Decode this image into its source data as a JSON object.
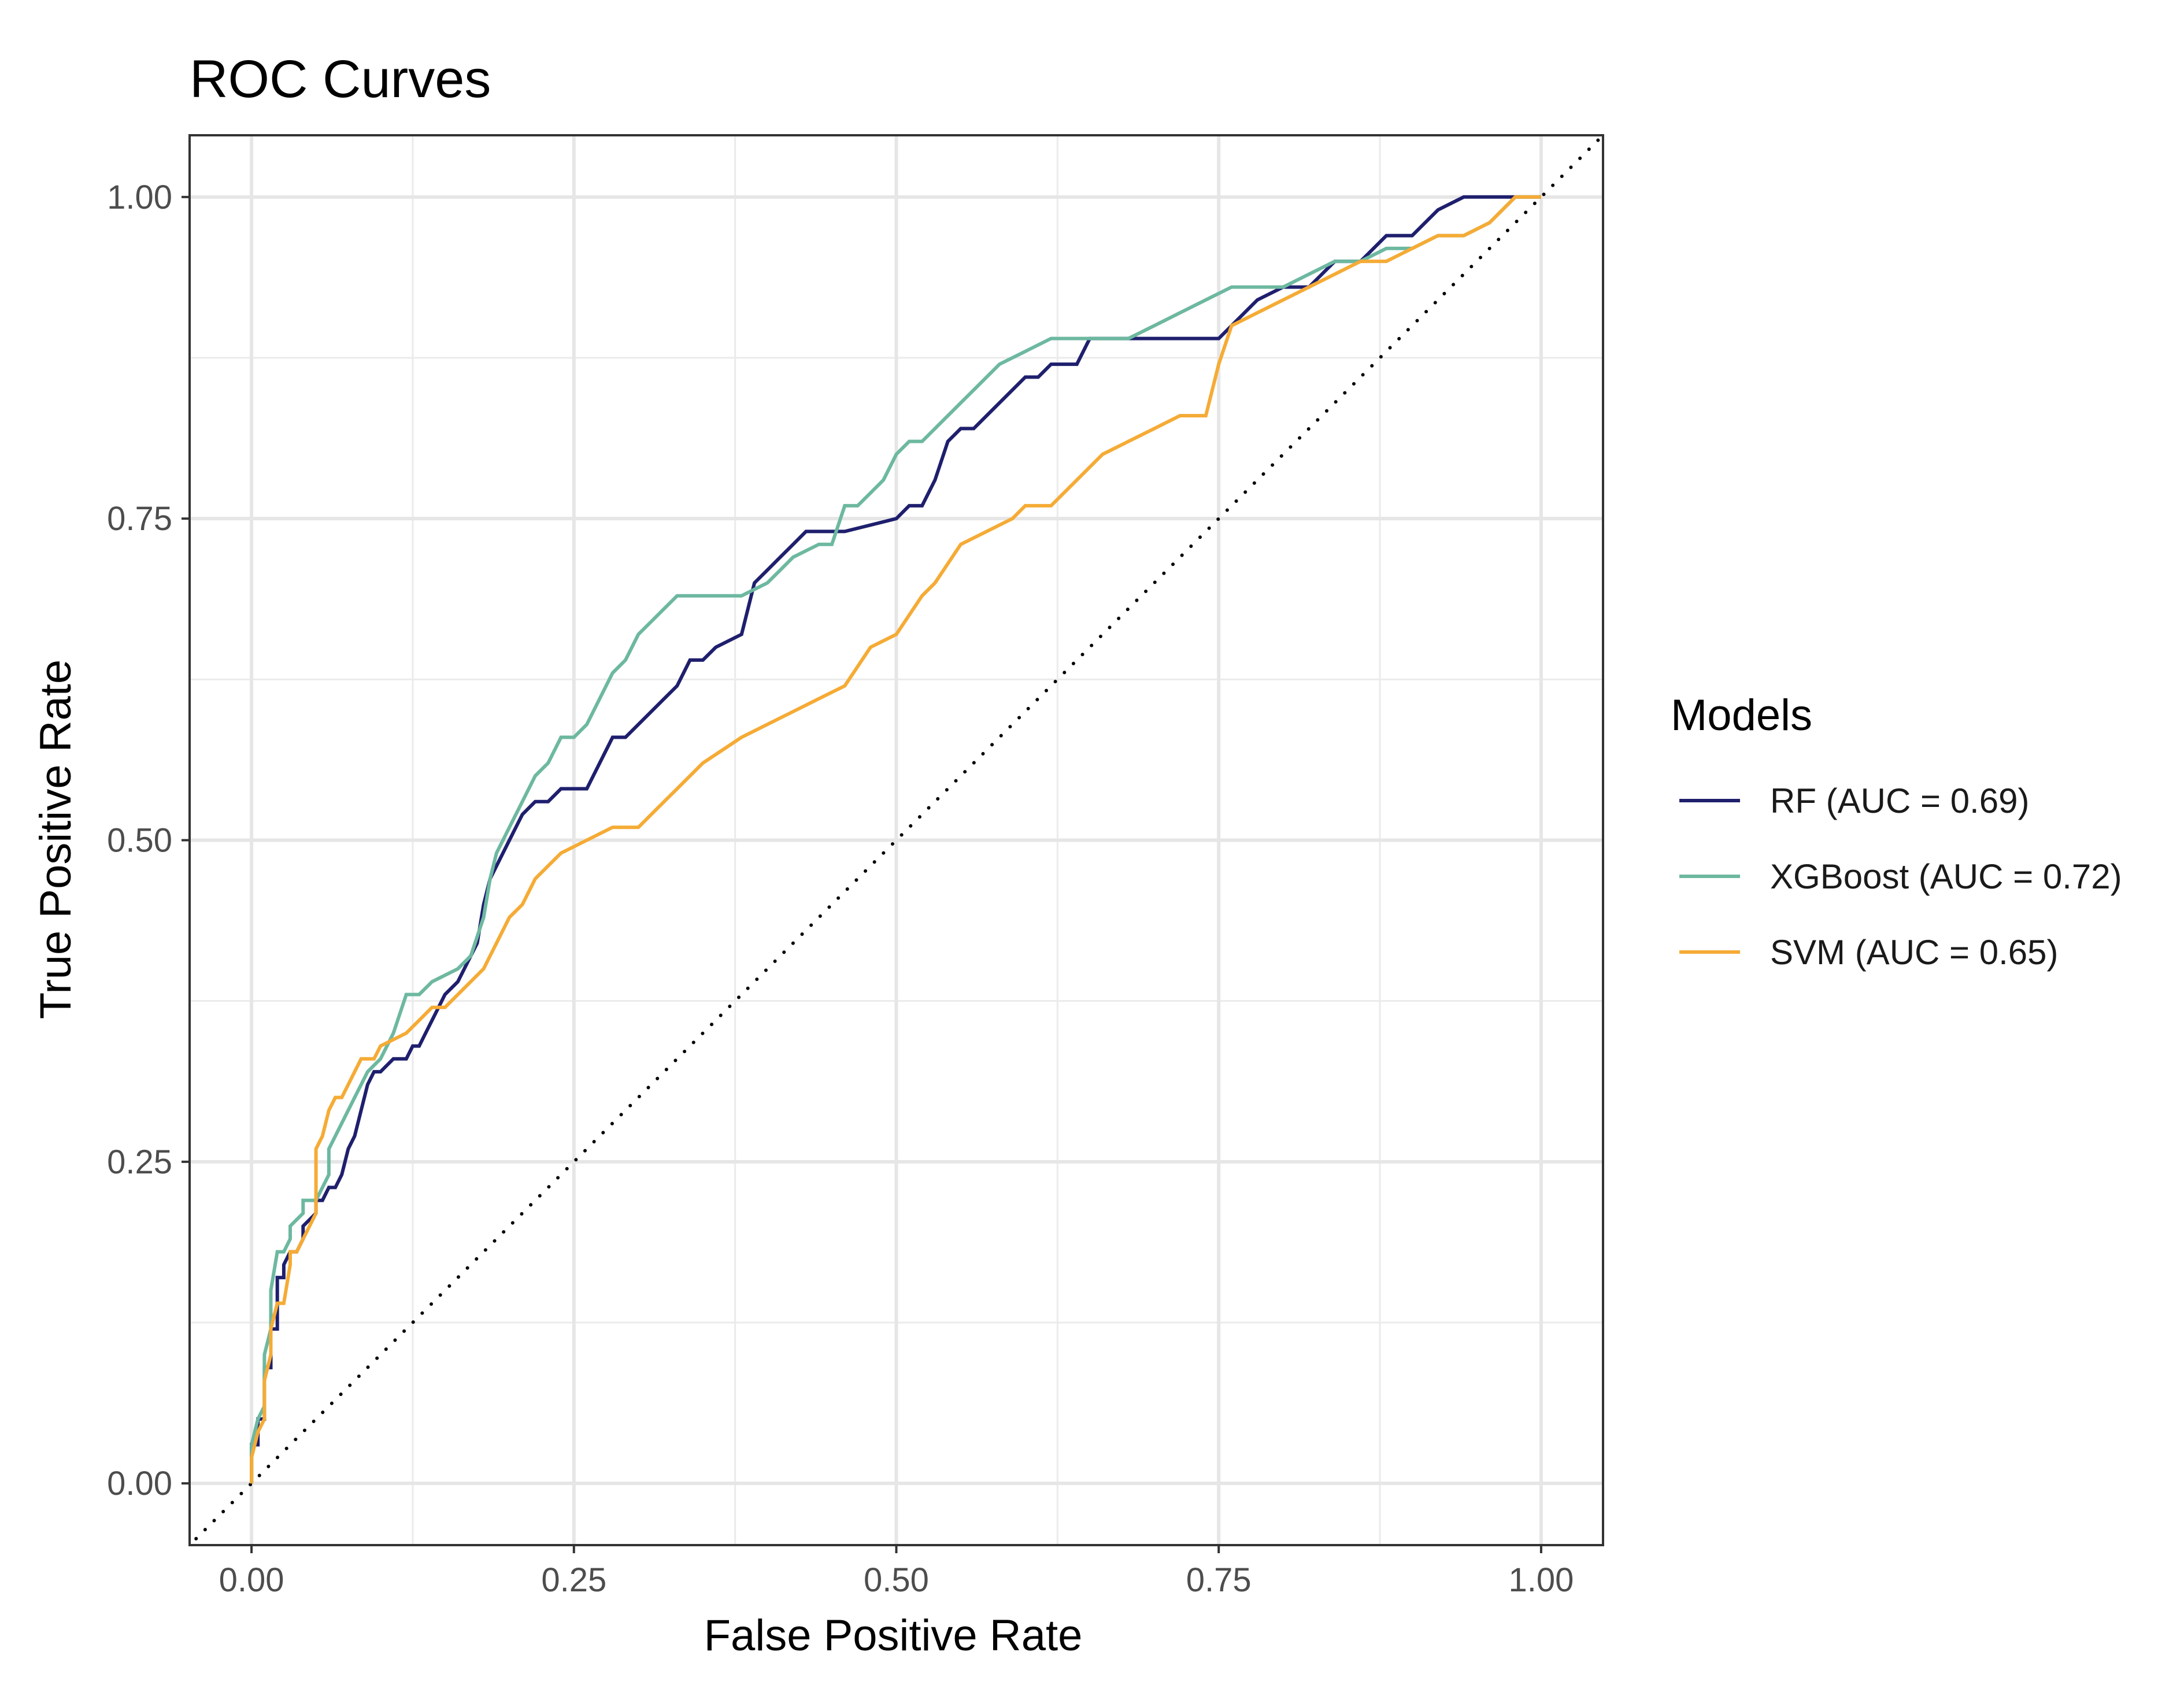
{
  "chart_data": {
    "type": "line",
    "title": "ROC Curves",
    "xlabel": "False Positive Rate",
    "ylabel": "True Positive Rate",
    "xlim": [
      -0.048,
      1.048
    ],
    "ylim": [
      -0.048,
      1.048
    ],
    "xticks": [
      0.0,
      0.25,
      0.5,
      0.75,
      1.0
    ],
    "xtick_labels": [
      "0.00",
      "0.25",
      "0.50",
      "0.75",
      "1.00"
    ],
    "yticks": [
      0.0,
      0.25,
      0.5,
      0.75,
      1.0
    ],
    "ytick_labels": [
      "0.00",
      "0.25",
      "0.50",
      "0.75",
      "1.00"
    ],
    "grid": true,
    "reference_line": {
      "style": "dotted",
      "color": "#000000",
      "x": [
        -0.05,
        1.05
      ],
      "y": [
        -0.05,
        1.05
      ]
    },
    "legend": {
      "title": "Models",
      "position": "right"
    },
    "series": [
      {
        "name": "RF (AUC = 0.69)",
        "color": "#1f1f6e",
        "x": [
          0.0,
          0.0,
          0.005,
          0.005,
          0.01,
          0.01,
          0.015,
          0.015,
          0.02,
          0.02,
          0.025,
          0.025,
          0.03,
          0.035,
          0.04,
          0.04,
          0.05,
          0.05,
          0.055,
          0.06,
          0.065,
          0.07,
          0.075,
          0.08,
          0.085,
          0.09,
          0.095,
          0.1,
          0.11,
          0.12,
          0.125,
          0.13,
          0.135,
          0.14,
          0.145,
          0.15,
          0.16,
          0.17,
          0.175,
          0.18,
          0.185,
          0.19,
          0.2,
          0.21,
          0.22,
          0.23,
          0.24,
          0.26,
          0.27,
          0.28,
          0.29,
          0.3,
          0.31,
          0.32,
          0.33,
          0.34,
          0.35,
          0.36,
          0.38,
          0.39,
          0.4,
          0.41,
          0.42,
          0.43,
          0.44,
          0.45,
          0.46,
          0.5,
          0.51,
          0.52,
          0.53,
          0.54,
          0.55,
          0.56,
          0.57,
          0.58,
          0.59,
          0.6,
          0.61,
          0.62,
          0.63,
          0.64,
          0.65,
          0.7,
          0.72,
          0.75,
          0.76,
          0.78,
          0.8,
          0.82,
          0.84,
          0.86,
          0.88,
          0.9,
          0.92,
          0.94,
          0.96,
          1.0
        ],
        "y": [
          0.0,
          0.03,
          0.03,
          0.05,
          0.05,
          0.09,
          0.09,
          0.12,
          0.12,
          0.16,
          0.16,
          0.17,
          0.18,
          0.18,
          0.19,
          0.2,
          0.21,
          0.22,
          0.22,
          0.23,
          0.23,
          0.24,
          0.26,
          0.27,
          0.29,
          0.31,
          0.32,
          0.32,
          0.33,
          0.33,
          0.34,
          0.34,
          0.35,
          0.36,
          0.37,
          0.38,
          0.39,
          0.41,
          0.42,
          0.45,
          0.47,
          0.48,
          0.5,
          0.52,
          0.53,
          0.53,
          0.54,
          0.54,
          0.56,
          0.58,
          0.58,
          0.59,
          0.6,
          0.61,
          0.62,
          0.64,
          0.64,
          0.65,
          0.66,
          0.7,
          0.71,
          0.72,
          0.73,
          0.74,
          0.74,
          0.74,
          0.74,
          0.75,
          0.76,
          0.76,
          0.78,
          0.81,
          0.82,
          0.82,
          0.83,
          0.84,
          0.85,
          0.86,
          0.86,
          0.87,
          0.87,
          0.87,
          0.89,
          0.89,
          0.89,
          0.89,
          0.9,
          0.92,
          0.93,
          0.93,
          0.95,
          0.95,
          0.97,
          0.97,
          0.99,
          1.0,
          1.0,
          1.0
        ]
      },
      {
        "name": "XGBoost (AUC = 0.72)",
        "color": "#6db8a0",
        "x": [
          0.0,
          0.0,
          0.005,
          0.01,
          0.01,
          0.015,
          0.015,
          0.02,
          0.025,
          0.03,
          0.03,
          0.04,
          0.04,
          0.05,
          0.06,
          0.06,
          0.07,
          0.08,
          0.09,
          0.1,
          0.11,
          0.12,
          0.13,
          0.14,
          0.16,
          0.17,
          0.18,
          0.185,
          0.19,
          0.2,
          0.21,
          0.22,
          0.23,
          0.24,
          0.25,
          0.26,
          0.27,
          0.28,
          0.29,
          0.3,
          0.31,
          0.33,
          0.34,
          0.36,
          0.38,
          0.4,
          0.41,
          0.42,
          0.44,
          0.45,
          0.46,
          0.47,
          0.48,
          0.49,
          0.5,
          0.51,
          0.52,
          0.53,
          0.54,
          0.55,
          0.56,
          0.57,
          0.58,
          0.6,
          0.62,
          0.64,
          0.66,
          0.68,
          0.7,
          0.72,
          0.74,
          0.76,
          0.78,
          0.8,
          0.82,
          0.84,
          0.86,
          0.88,
          0.9,
          0.92,
          0.94,
          0.96,
          0.98,
          1.0
        ],
        "y": [
          0.0,
          0.03,
          0.05,
          0.06,
          0.1,
          0.12,
          0.15,
          0.18,
          0.18,
          0.19,
          0.2,
          0.21,
          0.22,
          0.22,
          0.24,
          0.26,
          0.28,
          0.3,
          0.32,
          0.33,
          0.35,
          0.38,
          0.38,
          0.39,
          0.4,
          0.41,
          0.44,
          0.47,
          0.49,
          0.51,
          0.53,
          0.55,
          0.56,
          0.58,
          0.58,
          0.59,
          0.61,
          0.63,
          0.64,
          0.66,
          0.67,
          0.69,
          0.69,
          0.69,
          0.69,
          0.7,
          0.71,
          0.72,
          0.73,
          0.73,
          0.76,
          0.76,
          0.77,
          0.78,
          0.8,
          0.81,
          0.81,
          0.82,
          0.83,
          0.84,
          0.85,
          0.86,
          0.87,
          0.88,
          0.89,
          0.89,
          0.89,
          0.89,
          0.9,
          0.91,
          0.92,
          0.93,
          0.93,
          0.93,
          0.94,
          0.95,
          0.95,
          0.96,
          0.96,
          0.97,
          0.97,
          0.98,
          1.0,
          1.0
        ]
      },
      {
        "name": "SVM (AUC = 0.65)",
        "color": "#f5ab35",
        "x": [
          0.0,
          0.0,
          0.005,
          0.01,
          0.01,
          0.015,
          0.015,
          0.02,
          0.025,
          0.03,
          0.03,
          0.035,
          0.04,
          0.045,
          0.05,
          0.05,
          0.055,
          0.06,
          0.065,
          0.07,
          0.075,
          0.08,
          0.085,
          0.09,
          0.095,
          0.1,
          0.12,
          0.13,
          0.14,
          0.15,
          0.16,
          0.17,
          0.18,
          0.19,
          0.2,
          0.21,
          0.22,
          0.23,
          0.24,
          0.26,
          0.28,
          0.3,
          0.32,
          0.33,
          0.35,
          0.38,
          0.4,
          0.42,
          0.44,
          0.46,
          0.48,
          0.5,
          0.52,
          0.53,
          0.55,
          0.57,
          0.59,
          0.6,
          0.62,
          0.64,
          0.66,
          0.68,
          0.7,
          0.72,
          0.74,
          0.75,
          0.76,
          0.78,
          0.8,
          0.82,
          0.84,
          0.86,
          0.88,
          0.9,
          0.92,
          0.94,
          0.96,
          0.98,
          1.0
        ],
        "y": [
          0.0,
          0.02,
          0.04,
          0.05,
          0.08,
          0.1,
          0.12,
          0.14,
          0.14,
          0.17,
          0.18,
          0.18,
          0.19,
          0.2,
          0.21,
          0.26,
          0.27,
          0.29,
          0.3,
          0.3,
          0.31,
          0.32,
          0.33,
          0.33,
          0.33,
          0.34,
          0.35,
          0.36,
          0.37,
          0.37,
          0.38,
          0.39,
          0.4,
          0.42,
          0.44,
          0.45,
          0.47,
          0.48,
          0.49,
          0.5,
          0.51,
          0.51,
          0.53,
          0.54,
          0.56,
          0.58,
          0.59,
          0.6,
          0.61,
          0.62,
          0.65,
          0.66,
          0.69,
          0.7,
          0.73,
          0.74,
          0.75,
          0.76,
          0.76,
          0.78,
          0.8,
          0.81,
          0.82,
          0.83,
          0.83,
          0.87,
          0.9,
          0.91,
          0.92,
          0.93,
          0.94,
          0.95,
          0.95,
          0.96,
          0.97,
          0.97,
          0.98,
          1.0,
          1.0
        ]
      }
    ]
  }
}
